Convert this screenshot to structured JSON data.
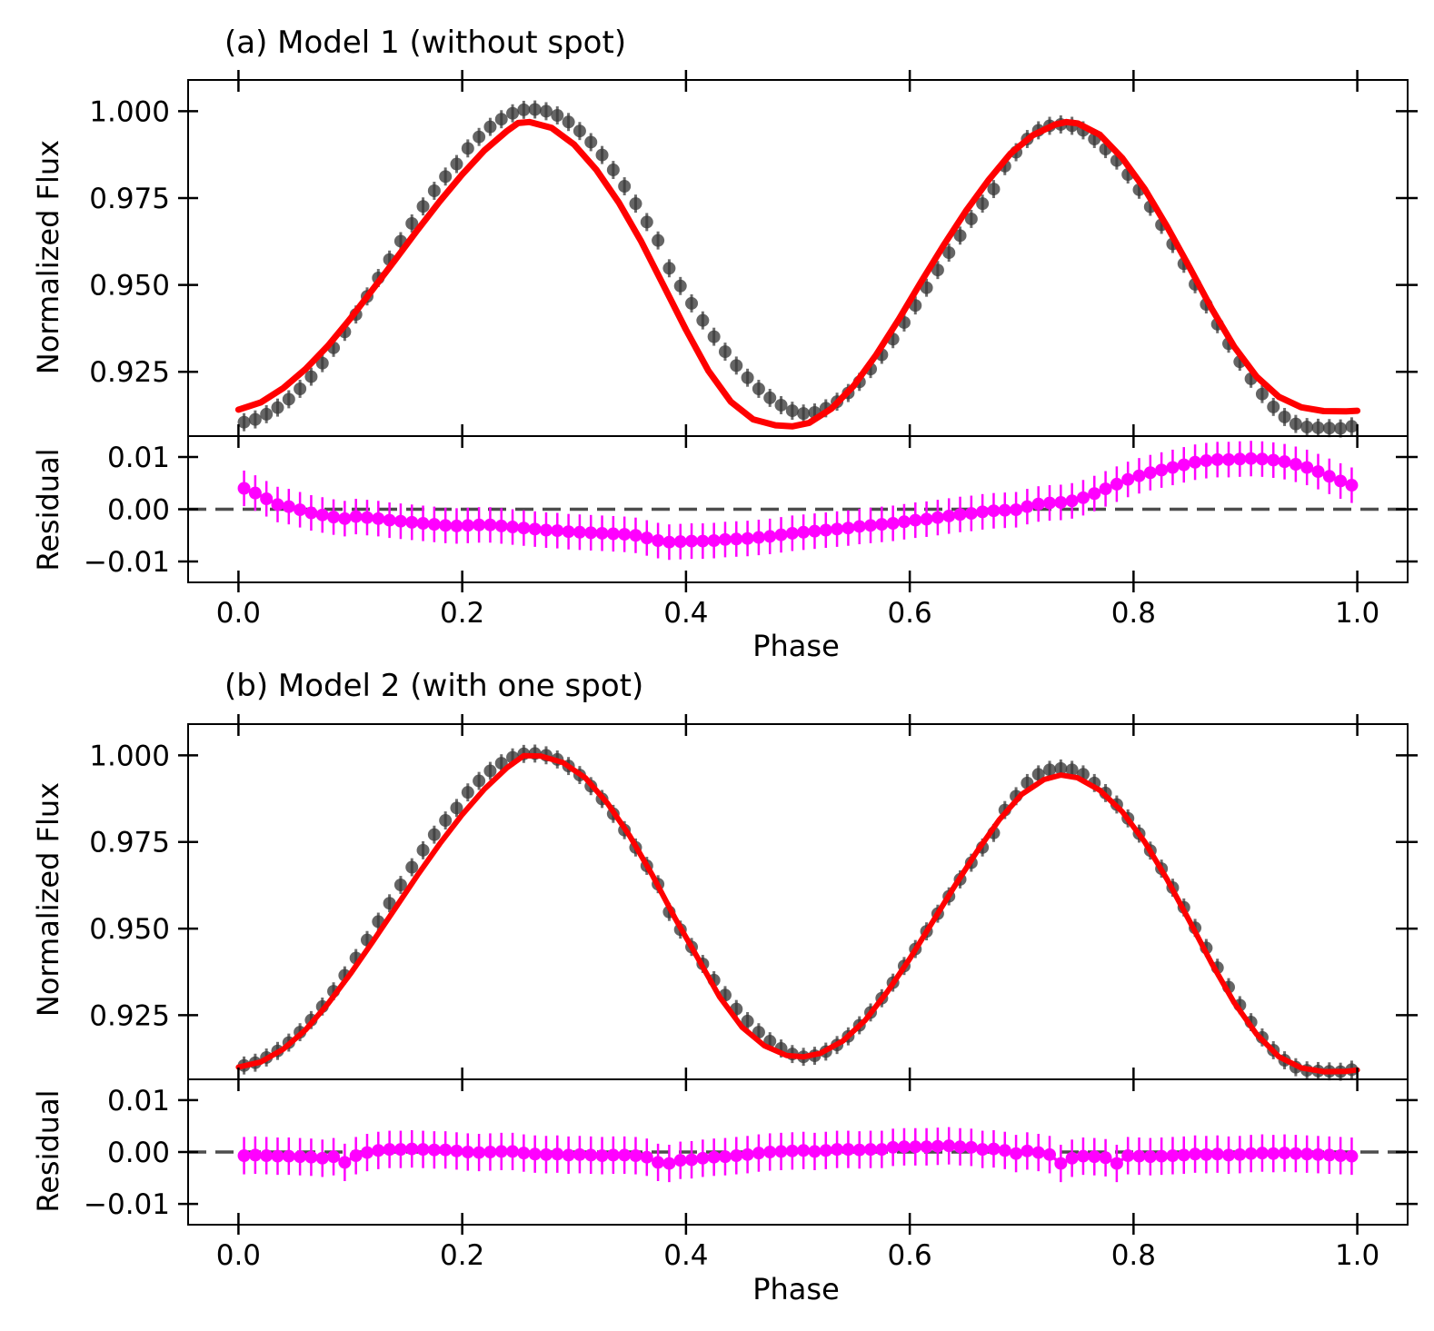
{
  "colors": {
    "data_points": "#3a3a3a",
    "model_line": "#ff0000",
    "residual": "#ff00ff",
    "zero_line": "#4d4d4d",
    "axes": "#000000"
  },
  "chart_data": [
    {
      "type": "scatter",
      "panel": "a",
      "title": "(a) Model 1 (without spot)",
      "xlabel": "Phase",
      "ylabel": "Normalized Flux",
      "residual_ylabel": "Residual",
      "xlim": [
        -0.045,
        1.045
      ],
      "ylim": [
        0.9065,
        1.009
      ],
      "residual_ylim": [
        -0.014,
        0.014
      ],
      "xticks": [
        "0.0",
        "0.2",
        "0.4",
        "0.6",
        "0.8",
        "1.0"
      ],
      "yticks": [
        "0.925",
        "0.950",
        "0.975",
        "1.000"
      ],
      "residual_yticks": [
        "−0.01",
        "0.00",
        "0.01"
      ],
      "error_bar_flux": 0.0026,
      "error_bar_residual": 0.0034,
      "observed": {
        "x": [
          0.005,
          0.015,
          0.025,
          0.035,
          0.045,
          0.055,
          0.065,
          0.075,
          0.085,
          0.095,
          0.105,
          0.115,
          0.125,
          0.135,
          0.145,
          0.155,
          0.165,
          0.175,
          0.185,
          0.195,
          0.205,
          0.215,
          0.225,
          0.235,
          0.245,
          0.255,
          0.265,
          0.275,
          0.285,
          0.295,
          0.305,
          0.315,
          0.325,
          0.335,
          0.345,
          0.355,
          0.365,
          0.375,
          0.385,
          0.395,
          0.405,
          0.415,
          0.425,
          0.435,
          0.445,
          0.455,
          0.465,
          0.475,
          0.485,
          0.495,
          0.505,
          0.515,
          0.525,
          0.535,
          0.545,
          0.555,
          0.565,
          0.575,
          0.585,
          0.595,
          0.605,
          0.615,
          0.625,
          0.635,
          0.645,
          0.655,
          0.665,
          0.675,
          0.685,
          0.695,
          0.705,
          0.715,
          0.725,
          0.735,
          0.745,
          0.755,
          0.765,
          0.775,
          0.785,
          0.795,
          0.805,
          0.815,
          0.825,
          0.835,
          0.845,
          0.855,
          0.865,
          0.875,
          0.885,
          0.895,
          0.905,
          0.915,
          0.925,
          0.935,
          0.945,
          0.955,
          0.965,
          0.975,
          0.985,
          0.995
        ],
        "y": [
          0.9105,
          0.9113,
          0.9128,
          0.9147,
          0.9171,
          0.9201,
          0.9236,
          0.9275,
          0.9319,
          0.9365,
          0.9415,
          0.9467,
          0.952,
          0.9573,
          0.9626,
          0.9677,
          0.9726,
          0.9771,
          0.9812,
          0.9848,
          0.9893,
          0.9926,
          0.9955,
          0.9977,
          0.9994,
          1.0004,
          1.0005,
          1.0,
          0.9988,
          0.9969,
          0.9943,
          0.9911,
          0.9874,
          0.9831,
          0.9784,
          0.9734,
          0.9681,
          0.9628,
          0.9548,
          0.9497,
          0.9447,
          0.9398,
          0.9351,
          0.9308,
          0.9268,
          0.9233,
          0.9201,
          0.9175,
          0.9154,
          0.9138,
          0.913,
          0.9133,
          0.9145,
          0.9164,
          0.9189,
          0.9221,
          0.9258,
          0.9299,
          0.9344,
          0.9392,
          0.9441,
          0.9492,
          0.9543,
          0.9593,
          0.9642,
          0.969,
          0.9734,
          0.9776,
          0.9842,
          0.9882,
          0.992,
          0.9945,
          0.9958,
          0.9962,
          0.9958,
          0.9945,
          0.992,
          0.9891,
          0.9858,
          0.9818,
          0.9774,
          0.9725,
          0.9673,
          0.9618,
          0.9561,
          0.9502,
          0.9444,
          0.9387,
          0.9331,
          0.9279,
          0.923,
          0.9186,
          0.9149,
          0.912,
          0.91,
          0.9091,
          0.9089,
          0.9088,
          0.9087,
          0.9093
        ]
      },
      "model": {
        "x": [
          0.0,
          0.02,
          0.04,
          0.06,
          0.08,
          0.1,
          0.12,
          0.14,
          0.16,
          0.18,
          0.2,
          0.22,
          0.24,
          0.25,
          0.26,
          0.28,
          0.3,
          0.32,
          0.34,
          0.36,
          0.38,
          0.4,
          0.42,
          0.44,
          0.46,
          0.48,
          0.495,
          0.51,
          0.53,
          0.55,
          0.57,
          0.59,
          0.61,
          0.63,
          0.65,
          0.67,
          0.69,
          0.71,
          0.73,
          0.74,
          0.75,
          0.77,
          0.79,
          0.81,
          0.83,
          0.85,
          0.87,
          0.89,
          0.91,
          0.93,
          0.95,
          0.97,
          0.99,
          1.0
        ],
        "y": [
          0.9141,
          0.9162,
          0.9203,
          0.9258,
          0.9325,
          0.9403,
          0.9487,
          0.9572,
          0.9658,
          0.9741,
          0.9818,
          0.9888,
          0.9943,
          0.9966,
          0.9969,
          0.9952,
          0.9904,
          0.9831,
          0.9737,
          0.9625,
          0.9498,
          0.9371,
          0.9253,
          0.9164,
          0.9113,
          0.9096,
          0.9093,
          0.9103,
          0.9144,
          0.921,
          0.9299,
          0.94,
          0.9508,
          0.9613,
          0.9712,
          0.98,
          0.9878,
          0.9931,
          0.9962,
          0.9969,
          0.9965,
          0.9932,
          0.9865,
          0.9776,
          0.9668,
          0.9551,
          0.9431,
          0.9322,
          0.9236,
          0.9178,
          0.9148,
          0.9137,
          0.9136,
          0.9138
        ]
      },
      "residual": {
        "x": [
          0.005,
          0.015,
          0.025,
          0.035,
          0.045,
          0.055,
          0.065,
          0.075,
          0.085,
          0.095,
          0.105,
          0.115,
          0.125,
          0.135,
          0.145,
          0.155,
          0.165,
          0.175,
          0.185,
          0.195,
          0.205,
          0.215,
          0.225,
          0.235,
          0.245,
          0.255,
          0.265,
          0.275,
          0.285,
          0.295,
          0.305,
          0.315,
          0.325,
          0.335,
          0.345,
          0.355,
          0.365,
          0.375,
          0.385,
          0.395,
          0.405,
          0.415,
          0.425,
          0.435,
          0.445,
          0.455,
          0.465,
          0.475,
          0.485,
          0.495,
          0.505,
          0.515,
          0.525,
          0.535,
          0.545,
          0.555,
          0.565,
          0.575,
          0.585,
          0.595,
          0.605,
          0.615,
          0.625,
          0.635,
          0.645,
          0.655,
          0.665,
          0.675,
          0.685,
          0.695,
          0.705,
          0.715,
          0.725,
          0.735,
          0.745,
          0.755,
          0.765,
          0.775,
          0.785,
          0.795,
          0.805,
          0.815,
          0.825,
          0.835,
          0.845,
          0.855,
          0.865,
          0.875,
          0.885,
          0.895,
          0.905,
          0.915,
          0.925,
          0.935,
          0.945,
          0.955,
          0.965,
          0.975,
          0.985,
          0.995
        ],
        "y": [
          0.004,
          0.0031,
          0.002,
          0.0009,
          0.0005,
          -0.0001,
          -0.0007,
          -0.0011,
          -0.0015,
          -0.0018,
          -0.0014,
          -0.0016,
          -0.0018,
          -0.0021,
          -0.0023,
          -0.0025,
          -0.0027,
          -0.0029,
          -0.0031,
          -0.0032,
          -0.0031,
          -0.003,
          -0.003,
          -0.0032,
          -0.0034,
          -0.0036,
          -0.0038,
          -0.004,
          -0.0041,
          -0.0043,
          -0.0044,
          -0.0045,
          -0.0046,
          -0.0047,
          -0.0048,
          -0.005,
          -0.0055,
          -0.006,
          -0.0063,
          -0.0062,
          -0.0061,
          -0.0061,
          -0.006,
          -0.0058,
          -0.0057,
          -0.0056,
          -0.0054,
          -0.0052,
          -0.0049,
          -0.0046,
          -0.0044,
          -0.0042,
          -0.004,
          -0.0038,
          -0.0036,
          -0.0033,
          -0.0031,
          -0.0029,
          -0.0027,
          -0.0024,
          -0.0021,
          -0.0019,
          -0.0016,
          -0.0013,
          -0.001,
          -0.0008,
          -0.0005,
          -0.0003,
          -0.0002,
          -0.0001,
          0.0005,
          0.001,
          0.0012,
          0.0013,
          0.0016,
          0.0022,
          0.003,
          0.0039,
          0.0048,
          0.0057,
          0.0064,
          0.007,
          0.0075,
          0.008,
          0.0085,
          0.009,
          0.0093,
          0.0095,
          0.0095,
          0.0096,
          0.0097,
          0.0096,
          0.0094,
          0.0091,
          0.0086,
          0.008,
          0.0072,
          0.0063,
          0.0054,
          0.0046
        ]
      }
    },
    {
      "type": "scatter",
      "panel": "b",
      "title": "(b) Model 2 (with one spot)",
      "xlabel": "Phase",
      "ylabel": "Normalized Flux",
      "residual_ylabel": "Residual",
      "xlim": [
        -0.045,
        1.045
      ],
      "ylim": [
        0.9065,
        1.009
      ],
      "residual_ylim": [
        -0.014,
        0.014
      ],
      "xticks": [
        "0.0",
        "0.2",
        "0.4",
        "0.6",
        "0.8",
        "1.0"
      ],
      "yticks": [
        "0.925",
        "0.950",
        "0.975",
        "1.000"
      ],
      "residual_yticks": [
        "−0.01",
        "0.00",
        "0.01"
      ],
      "error_bar_flux": 0.0026,
      "error_bar_residual": 0.0036,
      "observed": {
        "x": [
          0.005,
          0.015,
          0.025,
          0.035,
          0.045,
          0.055,
          0.065,
          0.075,
          0.085,
          0.095,
          0.105,
          0.115,
          0.125,
          0.135,
          0.145,
          0.155,
          0.165,
          0.175,
          0.185,
          0.195,
          0.205,
          0.215,
          0.225,
          0.235,
          0.245,
          0.255,
          0.265,
          0.275,
          0.285,
          0.295,
          0.305,
          0.315,
          0.325,
          0.335,
          0.345,
          0.355,
          0.365,
          0.375,
          0.385,
          0.395,
          0.405,
          0.415,
          0.425,
          0.435,
          0.445,
          0.455,
          0.465,
          0.475,
          0.485,
          0.495,
          0.505,
          0.515,
          0.525,
          0.535,
          0.545,
          0.555,
          0.565,
          0.575,
          0.585,
          0.595,
          0.605,
          0.615,
          0.625,
          0.635,
          0.645,
          0.655,
          0.665,
          0.675,
          0.685,
          0.695,
          0.705,
          0.715,
          0.725,
          0.735,
          0.745,
          0.755,
          0.765,
          0.775,
          0.785,
          0.795,
          0.805,
          0.815,
          0.825,
          0.835,
          0.845,
          0.855,
          0.865,
          0.875,
          0.885,
          0.895,
          0.905,
          0.915,
          0.925,
          0.935,
          0.945,
          0.955,
          0.965,
          0.975,
          0.985,
          0.995
        ],
        "y": [
          0.9105,
          0.9113,
          0.9128,
          0.9147,
          0.9171,
          0.9201,
          0.9236,
          0.9275,
          0.9319,
          0.9365,
          0.9415,
          0.9467,
          0.952,
          0.9573,
          0.9626,
          0.9677,
          0.9726,
          0.9771,
          0.9812,
          0.9848,
          0.9893,
          0.9926,
          0.9955,
          0.9977,
          0.9994,
          1.0004,
          1.0005,
          1.0,
          0.9988,
          0.9969,
          0.9943,
          0.9911,
          0.9874,
          0.9831,
          0.9784,
          0.9734,
          0.9681,
          0.9628,
          0.9548,
          0.9497,
          0.9447,
          0.9398,
          0.9351,
          0.9308,
          0.9268,
          0.9233,
          0.9201,
          0.9175,
          0.9154,
          0.9138,
          0.913,
          0.9133,
          0.9145,
          0.9164,
          0.9189,
          0.9221,
          0.9258,
          0.9299,
          0.9344,
          0.9392,
          0.9441,
          0.9492,
          0.9543,
          0.9593,
          0.9642,
          0.969,
          0.9734,
          0.9776,
          0.9842,
          0.9882,
          0.992,
          0.9945,
          0.9958,
          0.9962,
          0.9958,
          0.9945,
          0.992,
          0.9891,
          0.9858,
          0.9818,
          0.9774,
          0.9725,
          0.9673,
          0.9618,
          0.9561,
          0.9502,
          0.9444,
          0.9387,
          0.9331,
          0.9279,
          0.923,
          0.9186,
          0.9149,
          0.912,
          0.91,
          0.9091,
          0.9089,
          0.9088,
          0.9087,
          0.9093
        ]
      },
      "model": {
        "x": [
          0.0,
          0.02,
          0.04,
          0.06,
          0.08,
          0.1,
          0.12,
          0.14,
          0.16,
          0.18,
          0.2,
          0.22,
          0.24,
          0.255,
          0.27,
          0.29,
          0.31,
          0.33,
          0.35,
          0.37,
          0.39,
          0.41,
          0.43,
          0.45,
          0.47,
          0.49,
          0.505,
          0.52,
          0.54,
          0.56,
          0.58,
          0.6,
          0.62,
          0.64,
          0.66,
          0.68,
          0.7,
          0.72,
          0.735,
          0.75,
          0.77,
          0.79,
          0.81,
          0.83,
          0.85,
          0.87,
          0.89,
          0.91,
          0.93,
          0.95,
          0.97,
          0.99,
          1.0
        ],
        "y": [
          0.91,
          0.9115,
          0.9152,
          0.9208,
          0.9283,
          0.9369,
          0.9462,
          0.9558,
          0.9654,
          0.9745,
          0.9829,
          0.9903,
          0.9964,
          0.9999,
          0.9998,
          0.9979,
          0.9935,
          0.9861,
          0.9766,
          0.9654,
          0.9531,
          0.9418,
          0.9303,
          0.9216,
          0.9162,
          0.9134,
          0.913,
          0.914,
          0.9175,
          0.9235,
          0.9318,
          0.9413,
          0.9517,
          0.9622,
          0.9722,
          0.9814,
          0.9887,
          0.993,
          0.9943,
          0.9935,
          0.9899,
          0.9837,
          0.975,
          0.9642,
          0.9522,
          0.9399,
          0.9286,
          0.9195,
          0.913,
          0.9098,
          0.9087,
          0.9088,
          0.9092
        ]
      },
      "residual": {
        "x": [
          0.005,
          0.015,
          0.025,
          0.035,
          0.045,
          0.055,
          0.065,
          0.075,
          0.085,
          0.095,
          0.105,
          0.115,
          0.125,
          0.135,
          0.145,
          0.155,
          0.165,
          0.175,
          0.185,
          0.195,
          0.205,
          0.215,
          0.225,
          0.235,
          0.245,
          0.255,
          0.265,
          0.275,
          0.285,
          0.295,
          0.305,
          0.315,
          0.325,
          0.335,
          0.345,
          0.355,
          0.365,
          0.375,
          0.385,
          0.395,
          0.405,
          0.415,
          0.425,
          0.435,
          0.445,
          0.455,
          0.465,
          0.475,
          0.485,
          0.495,
          0.505,
          0.515,
          0.525,
          0.535,
          0.545,
          0.555,
          0.565,
          0.575,
          0.585,
          0.595,
          0.605,
          0.615,
          0.625,
          0.635,
          0.645,
          0.655,
          0.665,
          0.675,
          0.685,
          0.695,
          0.705,
          0.715,
          0.725,
          0.735,
          0.745,
          0.755,
          0.765,
          0.775,
          0.785,
          0.795,
          0.805,
          0.815,
          0.825,
          0.835,
          0.845,
          0.855,
          0.865,
          0.875,
          0.885,
          0.895,
          0.905,
          0.915,
          0.925,
          0.935,
          0.945,
          0.955,
          0.965,
          0.975,
          0.985,
          0.995
        ],
        "y": [
          -0.0007,
          -0.0006,
          -0.0007,
          -0.0008,
          -0.0008,
          -0.0009,
          -0.001,
          -0.0012,
          -0.0009,
          -0.002,
          -0.0007,
          -0.0001,
          0.0003,
          0.0005,
          0.0005,
          0.0006,
          0.0005,
          0.0004,
          0.0004,
          0.0002,
          0.0,
          -0.0001,
          0.0,
          0.0001,
          0.0001,
          -0.0002,
          -0.0004,
          -0.0005,
          -0.0004,
          -0.0006,
          -0.0005,
          -0.0006,
          -0.0007,
          -0.0006,
          -0.0006,
          -0.0007,
          -0.001,
          -0.002,
          -0.0022,
          -0.0016,
          -0.0015,
          -0.0012,
          -0.001,
          -0.0009,
          -0.0007,
          -0.0005,
          -0.0002,
          0.0,
          0.0001,
          0.0002,
          0.0003,
          0.0001,
          0.0003,
          0.0005,
          0.0005,
          0.0004,
          0.0005,
          0.0005,
          0.0009,
          0.001,
          0.001,
          0.001,
          0.0011,
          0.0012,
          0.001,
          0.0009,
          0.0005,
          0.0006,
          0.0003,
          -0.0003,
          0.0002,
          -0.0001,
          -0.0005,
          -0.0022,
          -0.0012,
          -0.0008,
          -0.0009,
          -0.0011,
          -0.0022,
          -0.0007,
          -0.0008,
          -0.0009,
          -0.0008,
          -0.0007,
          -0.0006,
          -0.0004,
          -0.0005,
          -0.0004,
          -0.0006,
          -0.0005,
          -0.0003,
          -0.0002,
          -0.0003,
          -0.0002,
          -0.0003,
          -0.0004,
          -0.0005,
          -0.0006,
          -0.0007,
          -0.0008
        ]
      }
    }
  ]
}
